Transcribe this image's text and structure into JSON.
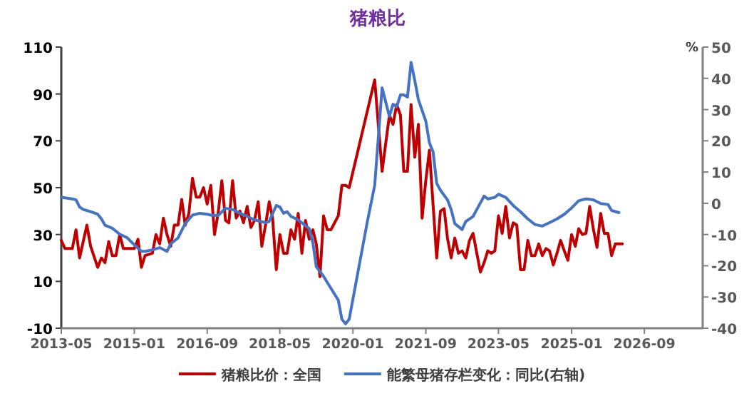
{
  "chart_data": {
    "type": "line",
    "title": "猪粮比",
    "y2label": "%",
    "xlim": [
      "2013-05",
      "2028-01"
    ],
    "xticks": [
      "2013-05",
      "2015-01",
      "2016-09",
      "2018-05",
      "2020-01",
      "2021-09",
      "2023-05",
      "2025-01",
      "2026-09"
    ],
    "ylim": [
      -10,
      110
    ],
    "yticks": [
      -10,
      10,
      30,
      50,
      70,
      90,
      110
    ],
    "y2lim": [
      -40,
      50
    ],
    "y2ticks": [
      -40,
      -30,
      -20,
      -10,
      0,
      10,
      20,
      30,
      40,
      50
    ],
    "grid": false,
    "legend": "bottom",
    "line_style": "solid",
    "marker": "none",
    "series": [
      {
        "name": "猪粮比价：全国",
        "color": "#c00000",
        "x": [
          "2013-05",
          "2013-06",
          "2013-08",
          "2013-09",
          "2013-10",
          "2013-12",
          "2014-01",
          "2014-03",
          "2014-04",
          "2014-05",
          "2014-06",
          "2014-07",
          "2014-08",
          "2014-09",
          "2014-10",
          "2014-12",
          "2015-01",
          "2015-02",
          "2015-03",
          "2015-04",
          "2015-06",
          "2015-07",
          "2015-08",
          "2015-09",
          "2015-10",
          "2015-11",
          "2015-12",
          "2016-01",
          "2016-02",
          "2016-03",
          "2016-04",
          "2016-05",
          "2016-06",
          "2016-07",
          "2016-08",
          "2016-09",
          "2016-10",
          "2016-11",
          "2016-12",
          "2017-01",
          "2017-02",
          "2017-03",
          "2017-04",
          "2017-05",
          "2017-06",
          "2017-07",
          "2017-08",
          "2017-09",
          "2017-10",
          "2017-11",
          "2017-12",
          "2018-01",
          "2018-02",
          "2018-03",
          "2018-04",
          "2018-05",
          "2018-06",
          "2018-07",
          "2018-08",
          "2018-09",
          "2018-10",
          "2018-11",
          "2018-12",
          "2019-01",
          "2019-02",
          "2019-03",
          "2019-04",
          "2019-05",
          "2019-06",
          "2019-07",
          "2019-08",
          "2019-09",
          "2019-10",
          "2019-11",
          "2019-12",
          "2020-07",
          "2020-09",
          "2020-11",
          "2020-12",
          "2021-01",
          "2021-02",
          "2021-03",
          "2021-04",
          "2021-05",
          "2021-06",
          "2021-07",
          "2021-08",
          "2021-09",
          "2021-10",
          "2021-12",
          "2022-01",
          "2022-02",
          "2022-03",
          "2022-04",
          "2022-05",
          "2022-06",
          "2022-07",
          "2022-08",
          "2022-09",
          "2022-10",
          "2022-11",
          "2022-12",
          "2023-01",
          "2023-02",
          "2023-03",
          "2023-04",
          "2023-05",
          "2023-06",
          "2023-07",
          "2023-08",
          "2023-09",
          "2023-10",
          "2023-11",
          "2023-12",
          "2024-01",
          "2024-02",
          "2024-03",
          "2024-04",
          "2024-05",
          "2024-06",
          "2024-07",
          "2024-08",
          "2024-09",
          "2024-10",
          "2024-11",
          "2024-12",
          "2025-01",
          "2025-02",
          "2025-03",
          "2025-04",
          "2025-05",
          "2025-06",
          "2025-07",
          "2025-08",
          "2025-09",
          "2025-10",
          "2025-11",
          "2025-12",
          "2026-01",
          "2026-03"
        ],
        "values": [
          27.5,
          24,
          24,
          32,
          20,
          34,
          25,
          16,
          20,
          18,
          27,
          21,
          21,
          30,
          24,
          24,
          24,
          28,
          16,
          21,
          22,
          30,
          26,
          37,
          30,
          25,
          34,
          34,
          45,
          34,
          39,
          54,
          46,
          46,
          50,
          43,
          51,
          30,
          39,
          53,
          36,
          35,
          53,
          37,
          40,
          35,
          42,
          33,
          36,
          44,
          25,
          34,
          44,
          37,
          15,
          30,
          22,
          22,
          32,
          28,
          39,
          22,
          36,
          28,
          32,
          26,
          12,
          38,
          32,
          32,
          35,
          38,
          51,
          51,
          50,
          96,
          57,
          81,
          77,
          85.5,
          81,
          57,
          57,
          85.5,
          63,
          77,
          37,
          53,
          66,
          20,
          40,
          41,
          28.5,
          20,
          28.5,
          22,
          23,
          20,
          27.5,
          30.5,
          22,
          14,
          18,
          23,
          22,
          23,
          38,
          30.5,
          42,
          28.5,
          35,
          34,
          15,
          15,
          27.5,
          21,
          21,
          26,
          21,
          24,
          23,
          17,
          22,
          27.5,
          23,
          19,
          30,
          25,
          32.5,
          30,
          30.5,
          42,
          32.5,
          24.5,
          39,
          30.5,
          30.5,
          21,
          26,
          26
        ]
      },
      {
        "name": "能繁母猪存栏变化：同比(右轴)",
        "color": "#4472c4",
        "axis": "y2",
        "x": [
          "2013-05",
          "2013-08",
          "2013-09",
          "2013-10",
          "2013-11",
          "2014-01",
          "2014-03",
          "2014-04",
          "2014-05",
          "2014-07",
          "2014-09",
          "2014-11",
          "2015-01",
          "2015-03",
          "2015-04",
          "2015-06",
          "2015-08",
          "2015-10",
          "2015-11",
          "2016-01",
          "2016-03",
          "2016-05",
          "2016-07",
          "2016-09",
          "2016-10",
          "2016-12",
          "2017-02",
          "2017-04",
          "2017-06",
          "2017-08",
          "2017-10",
          "2018-01",
          "2018-02",
          "2018-04",
          "2018-05",
          "2018-06",
          "2018-07",
          "2018-08",
          "2018-10",
          "2019-01",
          "2019-02",
          "2019-03",
          "2019-05",
          "2019-07",
          "2019-09",
          "2019-10",
          "2019-11",
          "2019-12",
          "2020-05",
          "2020-07",
          "2020-09",
          "2020-11",
          "2020-12",
          "2021-01",
          "2021-02",
          "2021-03",
          "2021-04",
          "2021-05",
          "2021-06",
          "2021-07",
          "2021-09",
          "2021-10",
          "2021-11",
          "2021-12",
          "2022-01",
          "2022-03",
          "2022-04",
          "2022-05",
          "2022-07",
          "2022-08",
          "2022-10",
          "2022-11",
          "2023-01",
          "2023-02",
          "2023-04",
          "2023-05",
          "2023-07",
          "2023-09",
          "2023-11",
          "2024-01",
          "2024-03",
          "2024-05",
          "2024-07",
          "2024-09",
          "2024-11",
          "2025-01",
          "2025-03",
          "2025-05",
          "2025-07",
          "2025-09",
          "2025-11",
          "2025-12",
          "2026-02"
        ],
        "values": [
          1.9,
          1.4,
          1.1,
          -1.2,
          -2,
          -2.7,
          -3.5,
          -5,
          -7,
          -8,
          -9.9,
          -11,
          -13.3,
          -15.4,
          -15.4,
          -14.9,
          -14.2,
          -15.4,
          -13,
          -11.1,
          -6.5,
          -3.8,
          -3.2,
          -3.5,
          -3.8,
          -3.9,
          -1.6,
          -2,
          -3.2,
          -4.2,
          -5.3,
          -6.2,
          -5.8,
          -0.7,
          -1.2,
          -3.2,
          -2.7,
          -4.2,
          -5.3,
          -8.1,
          -12.7,
          -20.3,
          -23.4,
          -27.2,
          -31,
          -37.1,
          -38.6,
          -37.1,
          -5.8,
          5.7,
          37,
          27.8,
          31.7,
          30.9,
          34.7,
          34.7,
          34,
          45.1,
          39.3,
          33.2,
          26.3,
          19.4,
          16.4,
          6.4,
          4.2,
          1.1,
          -2,
          -6.5,
          -8.4,
          -5.8,
          -4.2,
          -2,
          2.3,
          1.4,
          1.9,
          2.9,
          1.9,
          -0.7,
          -2.7,
          -5,
          -6.8,
          -7.3,
          -6.2,
          -5,
          -3.5,
          -1.5,
          0.8,
          1.4,
          1.1,
          -0.1,
          -0.4,
          -2.3,
          -3
        ]
      }
    ]
  }
}
